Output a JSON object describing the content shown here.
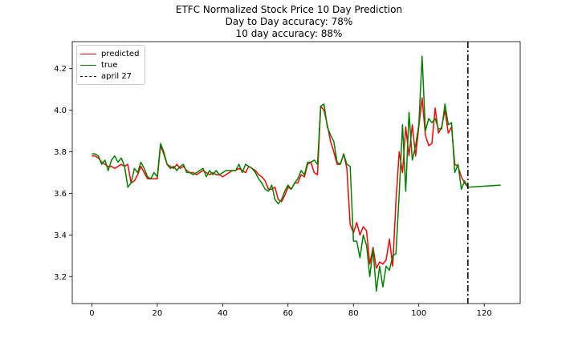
{
  "chart_data": {
    "type": "line",
    "title": "ETFC Normalized Stock Price 10 Day Prediction",
    "subtitle_lines": [
      "Day to Day accuracy: 78%",
      "10 day accuracy: 88%"
    ],
    "xlabel": "",
    "ylabel": "",
    "xlim": [
      -6,
      131
    ],
    "ylim": [
      3.07,
      4.33
    ],
    "x_ticks": [
      0,
      20,
      40,
      60,
      80,
      100,
      120
    ],
    "y_ticks": [
      3.2,
      3.4,
      3.6,
      3.8,
      4.0,
      4.2
    ],
    "y_tick_labels": [
      "3.2",
      "3.4",
      "3.6",
      "3.8",
      "4.0",
      "4.2"
    ],
    "grid": false,
    "legend_position": "top-left",
    "vline": {
      "x": 115,
      "label": "april 27",
      "style": "dash-dot",
      "color": "#000000"
    },
    "series": [
      {
        "name": "predicted",
        "color": "#ff0000",
        "x": [
          0,
          1,
          2,
          3,
          4,
          5,
          6,
          7,
          8,
          9,
          10,
          11,
          12,
          13,
          14,
          15,
          16,
          17,
          18,
          19,
          20,
          21,
          22,
          23,
          24,
          25,
          26,
          27,
          28,
          29,
          30,
          31,
          32,
          33,
          34,
          35,
          36,
          37,
          38,
          39,
          40,
          41,
          42,
          43,
          44,
          45,
          46,
          47,
          48,
          49,
          50,
          51,
          52,
          53,
          54,
          55,
          56,
          57,
          58,
          59,
          60,
          61,
          62,
          63,
          64,
          65,
          66,
          67,
          68,
          69,
          70,
          71,
          72,
          73,
          74,
          75,
          76,
          77,
          78,
          79,
          80,
          81,
          82,
          83,
          84,
          85,
          86,
          87,
          88,
          89,
          90,
          91,
          92,
          93,
          94,
          95,
          96,
          97,
          98,
          99,
          100,
          101,
          102,
          103,
          104,
          105,
          106,
          107,
          108,
          109,
          110,
          111,
          112,
          113,
          114,
          115
        ],
        "y": [
          3.78,
          3.78,
          3.77,
          3.75,
          3.74,
          3.73,
          3.73,
          3.72,
          3.73,
          3.74,
          3.73,
          3.74,
          3.65,
          3.66,
          3.69,
          3.73,
          3.7,
          3.67,
          3.67,
          3.67,
          3.67,
          3.83,
          3.79,
          3.74,
          3.73,
          3.72,
          3.74,
          3.72,
          3.73,
          3.71,
          3.7,
          3.7,
          3.69,
          3.7,
          3.71,
          3.7,
          3.69,
          3.7,
          3.69,
          3.69,
          3.68,
          3.69,
          3.7,
          3.71,
          3.71,
          3.72,
          3.71,
          3.7,
          3.73,
          3.72,
          3.71,
          3.69,
          3.68,
          3.66,
          3.62,
          3.62,
          3.63,
          3.57,
          3.56,
          3.59,
          3.63,
          3.62,
          3.65,
          3.65,
          3.69,
          3.68,
          3.74,
          3.75,
          3.7,
          3.69,
          4.02,
          4.0,
          3.93,
          3.85,
          3.8,
          3.74,
          3.74,
          3.79,
          3.72,
          3.45,
          3.41,
          3.46,
          3.4,
          3.44,
          3.42,
          3.26,
          3.34,
          3.24,
          3.27,
          3.26,
          3.28,
          3.38,
          3.25,
          3.56,
          3.8,
          3.7,
          3.92,
          3.78,
          3.93,
          3.78,
          3.92,
          4.06,
          3.88,
          3.83,
          3.84,
          4.01,
          3.89,
          3.92,
          4.0,
          3.89,
          3.92,
          3.74,
          3.73,
          3.68,
          3.65,
          3.63
        ]
      },
      {
        "name": "true",
        "color": "#008000",
        "x": [
          0,
          1,
          2,
          3,
          4,
          5,
          6,
          7,
          8,
          9,
          10,
          11,
          12,
          13,
          14,
          15,
          16,
          17,
          18,
          19,
          20,
          21,
          22,
          23,
          24,
          25,
          26,
          27,
          28,
          29,
          30,
          31,
          32,
          33,
          34,
          35,
          36,
          37,
          38,
          39,
          40,
          41,
          42,
          43,
          44,
          45,
          46,
          47,
          48,
          49,
          50,
          51,
          52,
          53,
          54,
          55,
          56,
          57,
          58,
          59,
          60,
          61,
          62,
          63,
          64,
          65,
          66,
          67,
          68,
          69,
          70,
          71,
          72,
          73,
          74,
          75,
          76,
          77,
          78,
          79,
          80,
          81,
          82,
          83,
          84,
          85,
          86,
          87,
          88,
          89,
          90,
          91,
          92,
          93,
          94,
          95,
          96,
          97,
          98,
          99,
          100,
          101,
          102,
          103,
          104,
          105,
          106,
          107,
          108,
          109,
          110,
          111,
          112,
          113,
          114,
          115,
          125
        ],
        "y": [
          3.79,
          3.79,
          3.78,
          3.74,
          3.76,
          3.71,
          3.76,
          3.78,
          3.75,
          3.77,
          3.73,
          3.63,
          3.65,
          3.72,
          3.7,
          3.75,
          3.72,
          3.68,
          3.67,
          3.7,
          3.68,
          3.84,
          3.8,
          3.74,
          3.72,
          3.73,
          3.71,
          3.73,
          3.74,
          3.7,
          3.7,
          3.69,
          3.7,
          3.71,
          3.72,
          3.68,
          3.71,
          3.69,
          3.71,
          3.69,
          3.7,
          3.71,
          3.71,
          3.71,
          3.71,
          3.74,
          3.7,
          3.74,
          3.73,
          3.72,
          3.7,
          3.67,
          3.65,
          3.62,
          3.61,
          3.64,
          3.57,
          3.55,
          3.57,
          3.61,
          3.64,
          3.62,
          3.65,
          3.67,
          3.71,
          3.69,
          3.75,
          3.75,
          3.76,
          3.74,
          4.02,
          4.03,
          3.92,
          3.88,
          3.85,
          3.75,
          3.74,
          3.79,
          3.74,
          3.73,
          3.37,
          3.37,
          3.29,
          3.4,
          3.35,
          3.2,
          3.33,
          3.13,
          3.25,
          3.15,
          3.25,
          3.23,
          3.3,
          3.31,
          3.6,
          3.93,
          3.61,
          3.99,
          3.76,
          3.83,
          3.93,
          4.26,
          3.9,
          3.96,
          3.94,
          3.96,
          3.91,
          3.91,
          4.03,
          3.93,
          3.94,
          3.7,
          3.74,
          3.62,
          3.66,
          3.63,
          3.64
        ]
      }
    ]
  }
}
